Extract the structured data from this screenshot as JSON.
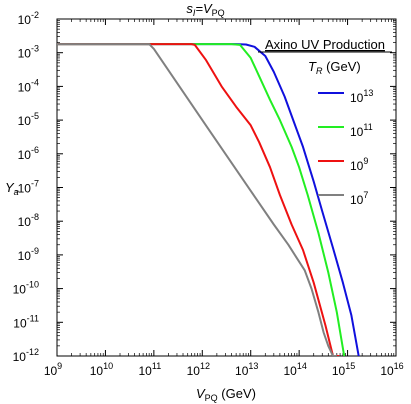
{
  "chart_data": {
    "type": "line",
    "title": {
      "main": "s",
      "main_sub": "I",
      "eq": "=V",
      "eq_sub": "PQ"
    },
    "xlabel": {
      "main": "V",
      "sub": "PQ",
      "unit": " (GeV)"
    },
    "ylabel": {
      "main": "Y",
      "sub": "a",
      "sup": "~"
    },
    "x_scale": "log",
    "y_scale": "log",
    "xlim": [
      1000000000.0,
      1e+16
    ],
    "ylim": [
      1e-12,
      0.01
    ],
    "x_ticks": [
      {
        "base": "10",
        "exp": "9",
        "value": 1000000000.0
      },
      {
        "base": "10",
        "exp": "10",
        "value": 10000000000.0
      },
      {
        "base": "10",
        "exp": "11",
        "value": 100000000000.0
      },
      {
        "base": "10",
        "exp": "12",
        "value": 1000000000000.0
      },
      {
        "base": "10",
        "exp": "13",
        "value": 10000000000000.0
      },
      {
        "base": "10",
        "exp": "14",
        "value": 100000000000000.0
      },
      {
        "base": "10",
        "exp": "15",
        "value": 1000000000000000.0
      },
      {
        "base": "10",
        "exp": "16",
        "value": 1e+16
      }
    ],
    "y_ticks": [
      {
        "base": "10",
        "exp": "-12",
        "value": 1e-12
      },
      {
        "base": "10",
        "exp": "-11",
        "value": 1e-11
      },
      {
        "base": "10",
        "exp": "-10",
        "value": 1e-10
      },
      {
        "base": "10",
        "exp": "-9",
        "value": 1e-09
      },
      {
        "base": "10",
        "exp": "-8",
        "value": 1e-08
      },
      {
        "base": "10",
        "exp": "-7",
        "value": 1e-07
      },
      {
        "base": "10",
        "exp": "-6",
        "value": 1e-06
      },
      {
        "base": "10",
        "exp": "-5",
        "value": 1e-05
      },
      {
        "base": "10",
        "exp": "-4",
        "value": 0.0001
      },
      {
        "base": "10",
        "exp": "-3",
        "value": 0.001
      },
      {
        "base": "10",
        "exp": "-2",
        "value": 0.01
      }
    ],
    "legend": {
      "heading": "Axino UV Production",
      "subheading": {
        "main": "T",
        "sub": "R",
        "unit": " (GeV)"
      },
      "placement": "right"
    },
    "grid": false,
    "series": [
      {
        "name": "10^13",
        "label": {
          "base": "10",
          "exp": "13"
        },
        "color": "#1010dd",
        "x": [
          1000000000.0,
          100000000000.0,
          1000000000000.0,
          5000000000000.0,
          8000000000000.0,
          12000000000000.0,
          20000000000000.0,
          30000000000000.0,
          50000000000000.0,
          80000000000000.0,
          120000000000000.0,
          200000000000000.0,
          300000000000000.0,
          500000000000000.0,
          800000000000000.0,
          1200000000000000.0,
          1700000000000000.0
        ],
        "y": [
          0.0018,
          0.0018,
          0.0018,
          0.0018,
          0.00175,
          0.0015,
          0.0008,
          0.00027,
          5e-05,
          8e-06,
          1.6e-06,
          1.5e-07,
          2e-08,
          1.6e-09,
          1.5e-10,
          1.6e-11,
          1e-12
        ]
      },
      {
        "name": "10^11",
        "label": {
          "base": "10",
          "exp": "11"
        },
        "color": "#22ee22",
        "x": [
          1000000000.0,
          100000000000.0,
          1000000000000.0,
          4000000000000.0,
          6000000000000.0,
          10000000000000.0,
          15000000000000.0,
          25000000000000.0,
          40000000000000.0,
          70000000000000.0,
          100000000000000.0,
          150000000000000.0,
          250000000000000.0,
          400000000000000.0,
          600000000000000.0,
          850000000000000.0
        ],
        "y": [
          0.0018,
          0.0018,
          0.0018,
          0.0018,
          0.0017,
          0.0007,
          0.0002,
          4e-05,
          1e-05,
          1.6e-06,
          4e-07,
          6e-08,
          4.5e-09,
          3e-10,
          2e-11,
          1e-12
        ]
      },
      {
        "name": "10^9",
        "label": {
          "base": "10",
          "exp": "9"
        },
        "color": "#ee1111",
        "x": [
          1000000000.0,
          100000000000.0,
          600000000000.0,
          700000000000.0,
          1200000000000.0,
          2500000000000.0,
          5000000000000.0,
          10000000000000.0,
          15000000000000.0,
          25000000000000.0,
          40000000000000.0,
          70000000000000.0,
          120000000000000.0,
          200000000000000.0,
          350000000000000.0,
          500000000000000.0,
          650000000000000.0
        ],
        "y": [
          0.0018,
          0.0018,
          0.0018,
          0.0017,
          0.0006,
          0.0001,
          2.5e-05,
          7e-06,
          2.2e-06,
          4e-07,
          6e-08,
          8e-09,
          1.4e-09,
          1.5e-10,
          8e-12,
          1e-12,
          1e-12
        ]
      },
      {
        "name": "10^7",
        "label": {
          "base": "10",
          "exp": "7"
        },
        "color": "#808080",
        "x": [
          1000000000.0,
          80000000000.0,
          100000000000.0,
          1000000000000.0,
          10000000000000.0,
          30000000000000.0,
          60000000000000.0,
          90000000000000.0,
          130000000000000.0,
          180000000000000.0,
          250000000000000.0,
          320000000000000.0,
          400000000000000.0,
          500000000000000.0,
          580000000000000.0
        ],
        "y": [
          0.0018,
          0.0018,
          0.0013,
          1e-05,
          8e-08,
          8e-09,
          2e-09,
          8e-10,
          3.5e-10,
          1e-10,
          2e-11,
          5e-12,
          2e-12,
          1e-12,
          1e-12
        ]
      }
    ]
  }
}
